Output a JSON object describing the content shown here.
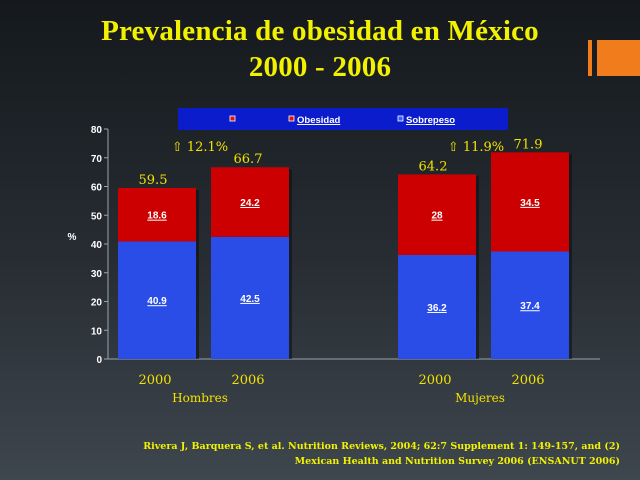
{
  "title_line1": "Prevalencia de obesidad en México",
  "title_line2": "2000 - 2006",
  "citation_line1": "Rivera J, Barquera S, et al. Nutrition Reviews, 2004; 62:7 Supplement 1: 149-157, and  (2)",
  "citation_line2": "Mexican Health and Nutrition Survey 2006 (ENSANUT 2006)",
  "colors": {
    "obesidad": "#cc0000",
    "sobrepeso": "#2a4de8",
    "title": "#f2f200",
    "accent": "#f07c1b"
  },
  "chart_data": {
    "type": "bar",
    "stacked": true,
    "ylabel": "%",
    "ylim": [
      0,
      80
    ],
    "yticks": [
      0,
      10,
      20,
      30,
      40,
      50,
      60,
      70,
      80
    ],
    "legend": {
      "position": "top",
      "entries": [
        "",
        "Obesidad",
        "Sobrepeso"
      ]
    },
    "groups": [
      {
        "label": "Hombres",
        "bars": [
          {
            "year": "2000",
            "sobrepeso": 40.9,
            "obesidad": 18.6,
            "total": "59.5"
          },
          {
            "year": "2006",
            "sobrepeso": 42.5,
            "obesidad": 24.2,
            "total": "66.7"
          }
        ],
        "increase": "⇧ 12.1%"
      },
      {
        "label": "Mujeres",
        "bars": [
          {
            "year": "2000",
            "sobrepeso": 36.2,
            "obesidad": 28,
            "total": "64.2"
          },
          {
            "year": "2006",
            "sobrepeso": 37.4,
            "obesidad": 34.5,
            "total": "71.9"
          }
        ],
        "increase": "⇧ 11.9%"
      }
    ]
  }
}
